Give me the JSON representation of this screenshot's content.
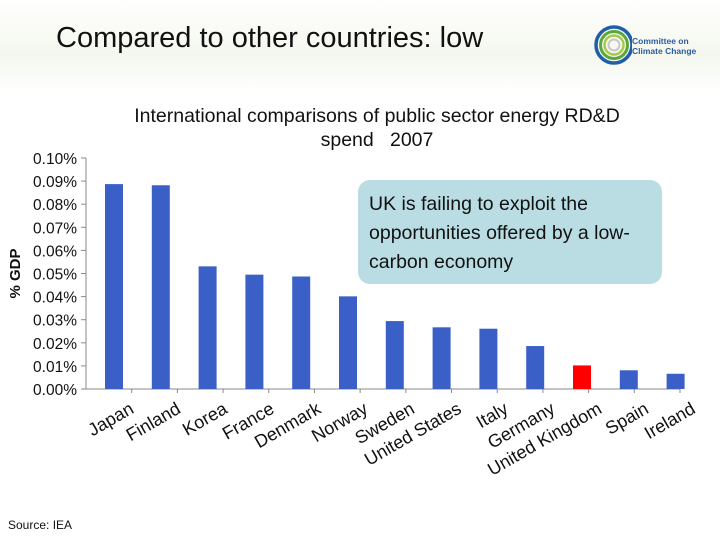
{
  "slide": {
    "title": "Compared to other countries: low",
    "source": "Source:  IEA",
    "callout": "UK is failing to exploit the opportunities offered by a low-carbon economy"
  },
  "logo": {
    "icon": "committee-on-climate-change-logo",
    "text": "Committee on Climate Change",
    "ring_colors": [
      "#1f5fa8",
      "#5aa73b",
      "#a6c94a",
      "#c8c8c8"
    ]
  },
  "chart_data": {
    "type": "bar",
    "title": "International comparisons of public sector energy RD&D spend   2007",
    "ylabel": "% GDP",
    "xlabel": "",
    "ylim": [
      0,
      0.1
    ],
    "yticks": [
      0,
      0.01,
      0.02,
      0.03,
      0.04,
      0.05,
      0.06,
      0.07,
      0.08,
      0.09,
      0.1
    ],
    "ytick_labels": [
      "0.00%",
      "0.01%",
      "0.02%",
      "0.03%",
      "0.04%",
      "0.05%",
      "0.06%",
      "0.07%",
      "0.08%",
      "0.09%",
      "0.10%"
    ],
    "categories": [
      "Japan",
      "Finland",
      "Korea",
      "France",
      "Denmark",
      "Norway",
      "Sweden",
      "United States",
      "Italy",
      "Germany",
      "United Kingdom",
      "Spain",
      "Ireland"
    ],
    "values": [
      0.0887,
      0.0882,
      0.0531,
      0.0495,
      0.0487,
      0.0401,
      0.0294,
      0.0267,
      0.0261,
      0.0186,
      0.0102,
      0.0081,
      0.0066
    ],
    "bar_color": "#3a60c8",
    "highlight": {
      "category": "United Kingdom",
      "color": "#ff0000"
    },
    "grid": false,
    "legend": "none"
  }
}
